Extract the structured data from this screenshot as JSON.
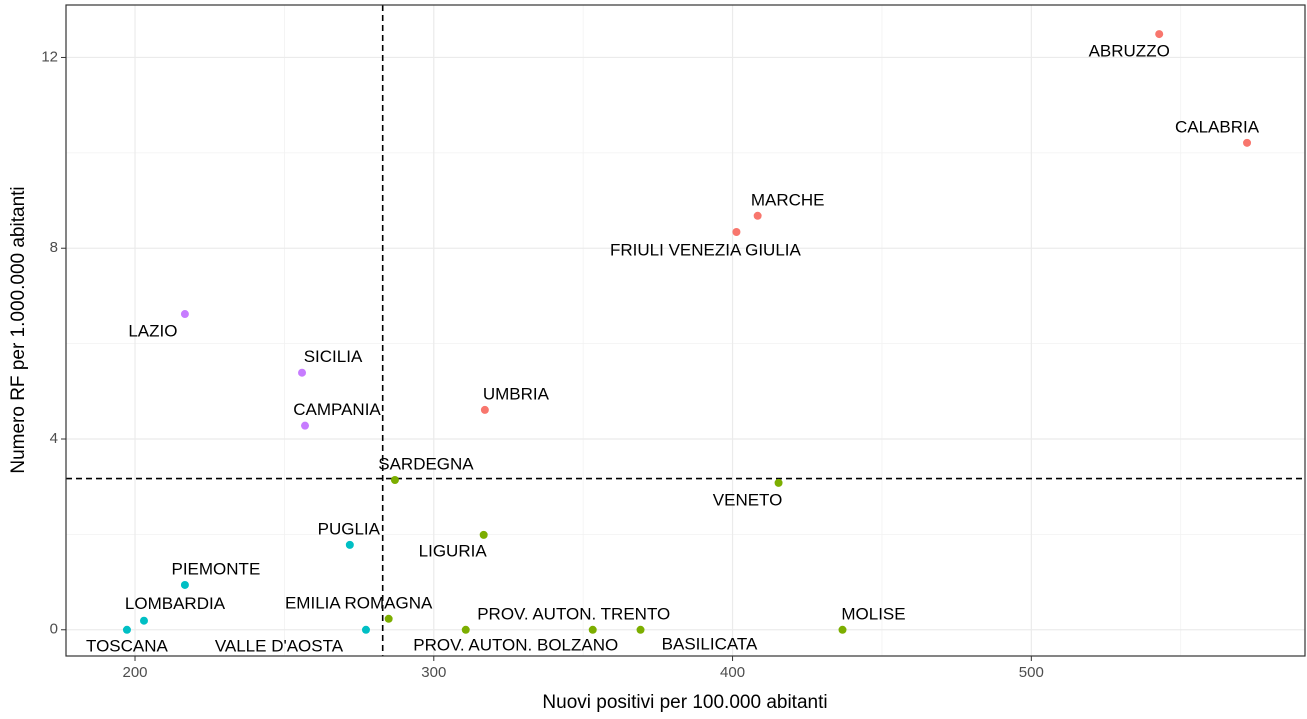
{
  "chart_data": {
    "type": "scatter",
    "x_label": "Nuovi positivi per 100.000 abitanti",
    "y_label": "Numero RF per 1.000.000 abitanti",
    "xlim": [
      176.9,
      591.6
    ],
    "ylim": [
      -0.55,
      13.1
    ],
    "xticks": [
      200,
      300,
      400,
      500
    ],
    "yticks": [
      0,
      4,
      8,
      12
    ],
    "grid": true,
    "minor_grid": true,
    "reference_lines": {
      "x": 282.9,
      "y": 3.17
    },
    "series": [
      {
        "color": "#F8766D",
        "labels": [
          "ABRUZZO",
          "CALABRIA",
          "MARCHE",
          "FRIULI VENEZIA GIULIA",
          "UMBRIA"
        ],
        "x": [
          542.8,
          572.2,
          408.4,
          401.3,
          317.1
        ],
        "values": [
          12.49,
          10.21,
          8.68,
          8.34,
          4.61
        ]
      },
      {
        "color": "#C77CFF",
        "labels": [
          "LAZIO",
          "SICILIA",
          "CAMPANIA"
        ],
        "x": [
          216.7,
          255.9,
          256.9
        ],
        "values": [
          6.62,
          5.39,
          4.28
        ]
      },
      {
        "color": "#7CAE00",
        "labels": [
          "SARDEGNA",
          "VENETO",
          "LIGURIA",
          "EMILIA ROMAGNA",
          "PROV. AUTON. BOLZANO",
          "PROV. AUTON. TRENTO",
          "BASILICATA",
          "MOLISE"
        ],
        "x": [
          287.0,
          415.4,
          316.7,
          284.9,
          310.7,
          353.2,
          369.2,
          436.8
        ],
        "values": [
          3.14,
          3.08,
          1.99,
          0.23,
          0,
          0,
          0,
          0
        ]
      },
      {
        "color": "#00BFC4",
        "labels": [
          "PUGLIA",
          "PIEMONTE",
          "LOMBARDIA",
          "TOSCANA",
          "VALLE D'AOSTA"
        ],
        "x": [
          271.9,
          216.7,
          203.0,
          197.3,
          277.3
        ],
        "values": [
          1.78,
          0.94,
          0.19,
          0,
          0
        ]
      }
    ]
  }
}
